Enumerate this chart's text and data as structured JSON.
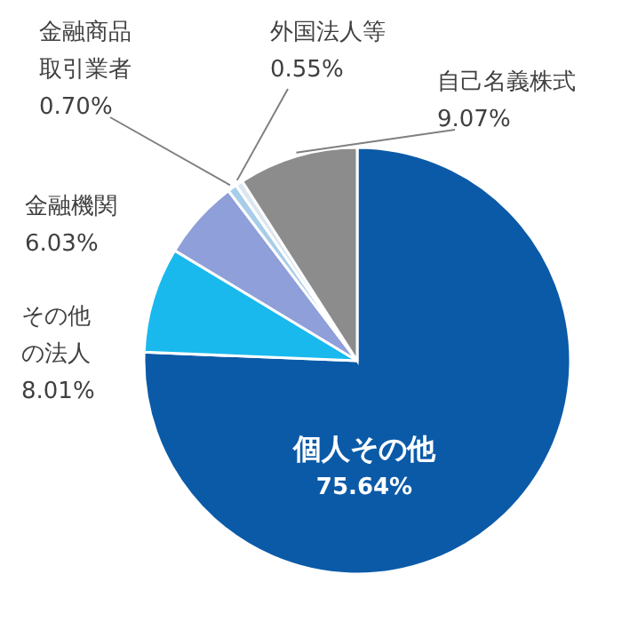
{
  "chart_data": {
    "type": "pie",
    "categories": [
      "個人その他",
      "その他の法人",
      "金融機関",
      "金融商品取引業者",
      "外国法人等",
      "自己名義株式"
    ],
    "values": [
      75.64,
      8.01,
      6.03,
      0.7,
      0.55,
      9.07
    ],
    "colors": [
      "#0b5aa8",
      "#19b9ee",
      "#8e9fd9",
      "#a7cde9",
      "#dbe6ef",
      "#8c8c8c"
    ],
    "value_labels": [
      "75.64%",
      "8.01%",
      "6.03%",
      "0.70%",
      "0.55%",
      "9.07%"
    ]
  }
}
